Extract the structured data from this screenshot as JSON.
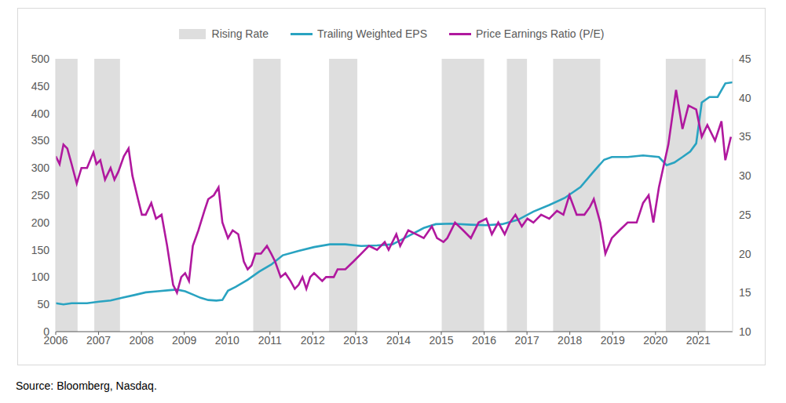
{
  "chart_data": {
    "type": "line",
    "legend": "top",
    "grid": false,
    "source": "Source: Bloomberg, Nasdaq.",
    "xlim": [
      2006,
      2021.8
    ],
    "xticks": [
      2006,
      2007,
      2008,
      2009,
      2010,
      2011,
      2012,
      2013,
      2014,
      2015,
      2016,
      2017,
      2018,
      2019,
      2020,
      2021
    ],
    "ylim": [
      0,
      500
    ],
    "yticks": [
      0,
      50,
      100,
      150,
      200,
      250,
      300,
      350,
      400,
      450,
      500
    ],
    "y2lim": [
      10,
      45
    ],
    "y2ticks": [
      10,
      15,
      20,
      25,
      30,
      35,
      40,
      45
    ],
    "shaded_periods": {
      "name": "Rising Rate",
      "color": "#dedede",
      "ranges": [
        [
          2006.0,
          2006.51
        ],
        [
          2006.9,
          2007.5
        ],
        [
          2010.61,
          2011.25
        ],
        [
          2012.38,
          2013.04
        ],
        [
          2015.01,
          2016.0
        ],
        [
          2016.53,
          2017.0
        ],
        [
          2017.61,
          2018.71
        ],
        [
          2020.24,
          2021.17
        ]
      ]
    },
    "series": [
      {
        "name": "Trailing Weighted EPS",
        "color": "#29a3c1",
        "axis": "y",
        "x": [
          2006.0,
          2006.18,
          2006.37,
          2006.73,
          2007.01,
          2007.28,
          2007.55,
          2007.83,
          2008.1,
          2008.38,
          2008.65,
          2008.83,
          2009.02,
          2009.2,
          2009.38,
          2009.56,
          2009.75,
          2009.89,
          2010.02,
          2010.2,
          2010.48,
          2010.75,
          2011.03,
          2011.3,
          2011.67,
          2012.03,
          2012.4,
          2012.76,
          2013.13,
          2013.5,
          2013.86,
          2014.23,
          2014.59,
          2014.87,
          2015.23,
          2015.69,
          2016.05,
          2016.42,
          2016.79,
          2017.15,
          2017.52,
          2017.88,
          2018.25,
          2018.52,
          2018.8,
          2018.98,
          2019.35,
          2019.71,
          2020.08,
          2020.26,
          2020.44,
          2020.63,
          2020.81,
          2020.95,
          2021.08,
          2021.26,
          2021.45,
          2021.63,
          2021.8
        ],
        "values": [
          52,
          50,
          52,
          52,
          55,
          57,
          62,
          67,
          72,
          74,
          76,
          77,
          74,
          68,
          62,
          58,
          57,
          58,
          75,
          82,
          95,
          110,
          123,
          140,
          148,
          155,
          160,
          160,
          157,
          158,
          160,
          175,
          190,
          197,
          198,
          196,
          195,
          197,
          205,
          220,
          232,
          245,
          265,
          290,
          315,
          320,
          320,
          323,
          320,
          305,
          310,
          320,
          330,
          345,
          420,
          430,
          430,
          455,
          457
        ]
      },
      {
        "name": "Price Earnings Ratio (P/E)",
        "color": "#b0189e",
        "axis": "y2",
        "x": [
          2006.0,
          2006.09,
          2006.18,
          2006.27,
          2006.37,
          2006.49,
          2006.6,
          2006.73,
          2006.88,
          2006.95,
          2007.04,
          2007.15,
          2007.28,
          2007.37,
          2007.46,
          2007.59,
          2007.7,
          2007.79,
          2007.92,
          2008.01,
          2008.1,
          2008.23,
          2008.34,
          2008.47,
          2008.6,
          2008.74,
          2008.83,
          2008.93,
          2009.02,
          2009.11,
          2009.2,
          2009.33,
          2009.47,
          2009.56,
          2009.69,
          2009.8,
          2009.89,
          2010.02,
          2010.13,
          2010.26,
          2010.39,
          2010.48,
          2010.57,
          2010.66,
          2010.79,
          2010.93,
          2011.03,
          2011.12,
          2011.25,
          2011.36,
          2011.48,
          2011.58,
          2011.67,
          2011.76,
          2011.85,
          2011.94,
          2012.03,
          2012.22,
          2012.31,
          2012.49,
          2012.58,
          2012.76,
          2012.95,
          2013.13,
          2013.31,
          2013.5,
          2013.68,
          2013.77,
          2013.95,
          2014.04,
          2014.23,
          2014.41,
          2014.59,
          2014.78,
          2014.9,
          2015.05,
          2015.14,
          2015.32,
          2015.51,
          2015.69,
          2015.87,
          2016.05,
          2016.18,
          2016.33,
          2016.48,
          2016.6,
          2016.73,
          2016.88,
          2017.01,
          2017.15,
          2017.33,
          2017.52,
          2017.7,
          2017.85,
          2017.99,
          2018.16,
          2018.34,
          2018.47,
          2018.56,
          2018.71,
          2018.83,
          2018.98,
          2019.16,
          2019.35,
          2019.56,
          2019.71,
          2019.84,
          2019.95,
          2020.08,
          2020.3,
          2020.48,
          2020.63,
          2020.77,
          2020.95,
          2021.08,
          2021.21,
          2021.39,
          2021.54,
          2021.63,
          2021.76
        ],
        "values": [
          32.5,
          31.5,
          34,
          33.5,
          31.5,
          29,
          31,
          31,
          33,
          31.5,
          32,
          29.5,
          31,
          29.5,
          30.5,
          32.5,
          33.5,
          30,
          27,
          25,
          25,
          26.5,
          24.5,
          25,
          21,
          16,
          15,
          17,
          17.5,
          16.5,
          21,
          23,
          25.5,
          27,
          27.5,
          28.5,
          24,
          22,
          23,
          22.5,
          19,
          18,
          18.5,
          20,
          20,
          21,
          20,
          19,
          17,
          17.5,
          16.5,
          15.5,
          16,
          17,
          15.5,
          17,
          17.5,
          16.5,
          17,
          17,
          18,
          18,
          19,
          20,
          21,
          20.5,
          21.5,
          20.5,
          22.5,
          21,
          23,
          22.5,
          22,
          23.5,
          22,
          21.5,
          22,
          24,
          23,
          22,
          24,
          24.5,
          22.5,
          24,
          22.5,
          24,
          25,
          23.5,
          24.5,
          24,
          25,
          24.5,
          25.5,
          25,
          27.5,
          25,
          25,
          26,
          27,
          24,
          20,
          22,
          23,
          24,
          24,
          26.5,
          27.5,
          24,
          28.5,
          34,
          41,
          36,
          39,
          38.5,
          35,
          36.5,
          34.5,
          37,
          32,
          35
        ]
      }
    ]
  }
}
